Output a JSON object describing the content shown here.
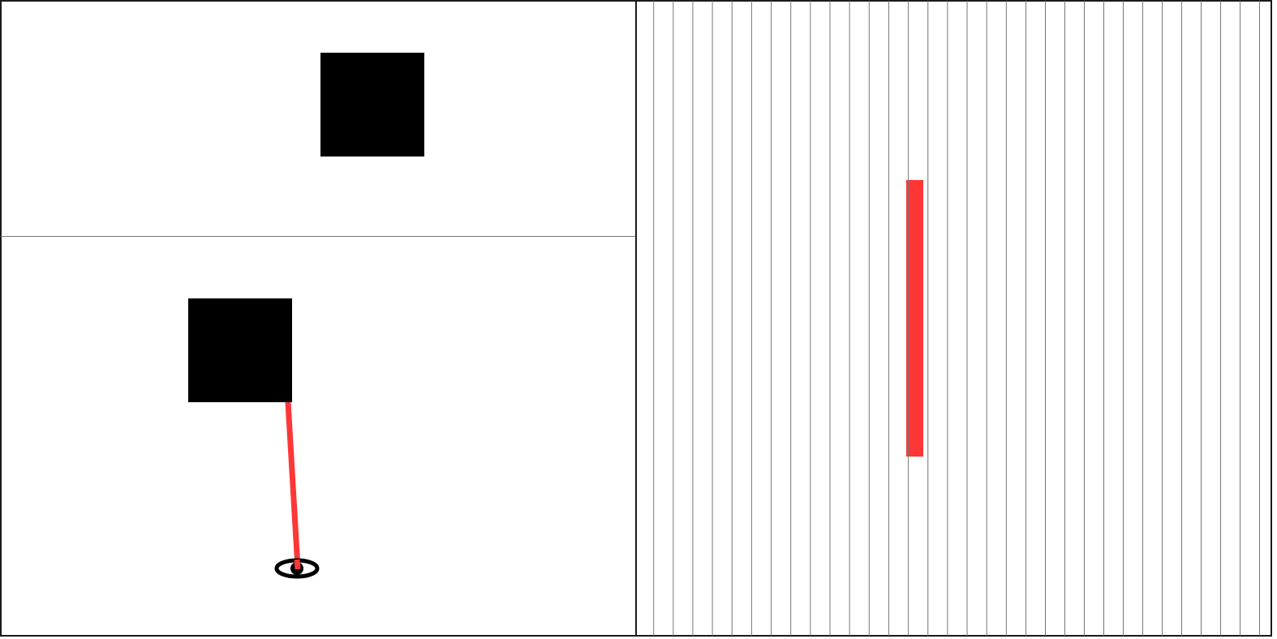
{
  "colors": {
    "border": "#1a1a1a",
    "grid_line": "#777777",
    "wall": "#000000",
    "ray": "#ff3636",
    "background": "#ffffff"
  },
  "views": {
    "top_view": {
      "object": "black-square"
    },
    "bottom_view": {
      "object": "black-square",
      "viewer_icon": "eye-icon",
      "ray_color": "#ff3636"
    },
    "projection": {
      "column_count": 33,
      "hit_column": 14,
      "hit_color": "#ff3636"
    }
  }
}
